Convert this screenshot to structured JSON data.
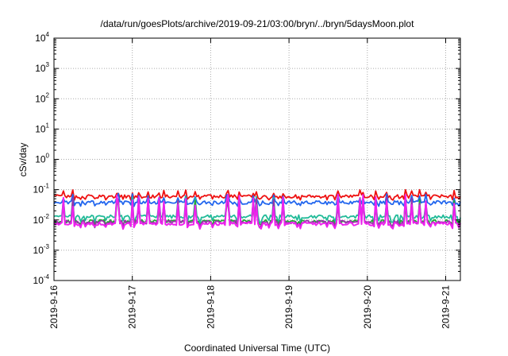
{
  "chart_data": {
    "type": "line",
    "title": "/data/run/goesPlots/archive/2019-09-21/03:00/bryn/../bryn/5daysMoon.plot",
    "xlabel": "Coordinated Universal Time (UTC)",
    "ylabel": "cSv/day",
    "x_range": [
      "2019-09-16T00:00",
      "2019-09-21T04:30"
    ],
    "y_scale": "log",
    "ylim": [
      0.0001,
      10000
    ],
    "grid": true,
    "legend": "none",
    "x_tick_labels": [
      "2019-9-16",
      "2019-9-17",
      "2019-9-18",
      "2019-9-19",
      "2019-9-20",
      "2019-9-21"
    ],
    "y_ticks": [
      {
        "base": "10",
        "exp": "-4"
      },
      {
        "base": "10",
        "exp": "-3"
      },
      {
        "base": "10",
        "exp": "-2"
      },
      {
        "base": "10",
        "exp": "-1"
      },
      {
        "base": "10",
        "exp": "0"
      },
      {
        "base": "10",
        "exp": "1"
      },
      {
        "base": "10",
        "exp": "2"
      },
      {
        "base": "10",
        "exp": "3"
      },
      {
        "base": "10",
        "exp": "4"
      }
    ],
    "series": [
      {
        "color": "#ee1111",
        "baseline": 0.06,
        "low": 0.045,
        "high": 0.1
      },
      {
        "color": "#2266ee",
        "baseline": 0.038,
        "low": 0.028,
        "high": 0.075
      },
      {
        "color": "#22bb99",
        "baseline": 0.013,
        "low": 0.007,
        "high": 0.06
      },
      {
        "color": "#22aa33",
        "baseline": 0.009,
        "low": 0.006,
        "high": 0.05
      },
      {
        "color": "#9933aa",
        "baseline": 0.0085,
        "low": 0.0055,
        "high": 0.06
      },
      {
        "color": "#ee22ee",
        "baseline": 0.0075,
        "low": 0.005,
        "high": 0.07
      }
    ]
  }
}
